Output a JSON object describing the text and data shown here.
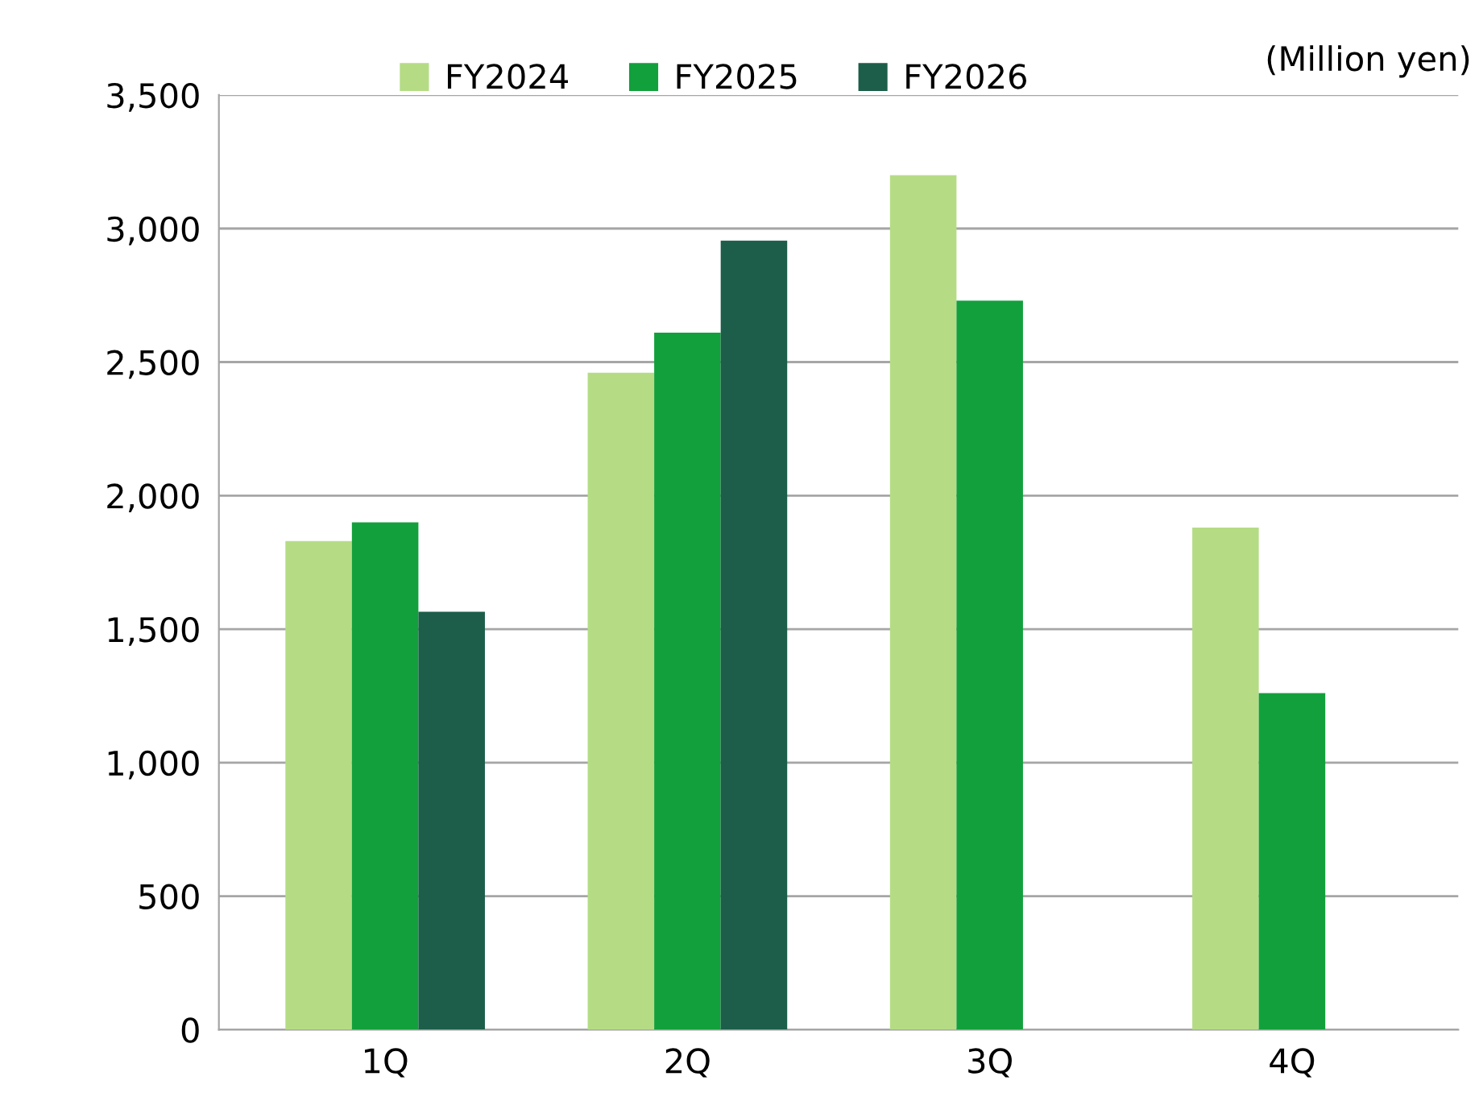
{
  "chart_data": {
    "type": "bar",
    "categories": [
      "1Q",
      "2Q",
      "3Q",
      "4Q"
    ],
    "series": [
      {
        "name": "FY2024",
        "color": "#b5dc85",
        "values": [
          1830,
          2460,
          3200,
          1880
        ]
      },
      {
        "name": "FY2025",
        "color": "#12a03c",
        "values": [
          1900,
          2610,
          2730,
          1260
        ]
      },
      {
        "name": "FY2026",
        "color": "#1c5e4a",
        "values": [
          1565,
          2955,
          null,
          null
        ]
      }
    ],
    "ylim": [
      0,
      3500
    ],
    "yticks": [
      {
        "value": 0,
        "label": "0"
      },
      {
        "value": 500,
        "label": "500"
      },
      {
        "value": 1000,
        "label": "1,000"
      },
      {
        "value": 1500,
        "label": "1,500"
      },
      {
        "value": 2000,
        "label": "2,000"
      },
      {
        "value": 2500,
        "label": "2,500"
      },
      {
        "value": 3000,
        "label": "3,000"
      },
      {
        "value": 3500,
        "label": "3,500"
      }
    ],
    "grid": "y",
    "legend": "top",
    "annotations": [
      "(Million yen)"
    ]
  }
}
